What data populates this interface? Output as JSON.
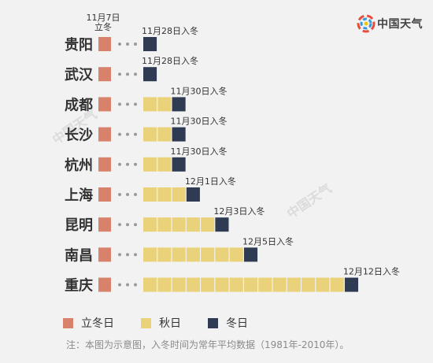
{
  "brand": {
    "name": "中国天气",
    "watermark": "中国天气"
  },
  "chart_data": {
    "type": "bar",
    "title": "",
    "first_day_label": "11月7日\n立冬",
    "categories": [
      "贵阳",
      "武汉",
      "成都",
      "长沙",
      "杭州",
      "上海",
      "昆明",
      "南昌",
      "重庆"
    ],
    "autumn_days": [
      0,
      0,
      2,
      2,
      2,
      3,
      5,
      7,
      14
    ],
    "winter_start_labels": [
      "11月28日入冬",
      "11月28日入冬",
      "11月30日入冬",
      "11月30日入冬",
      "11月30日入冬",
      "12月1日入冬",
      "12月3日入冬",
      "12月5日入冬",
      "12月12日入冬"
    ],
    "series": [
      {
        "name": "立冬日",
        "color": "#d9826b"
      },
      {
        "name": "秋日",
        "color": "#ead27a"
      },
      {
        "name": "冬日",
        "color": "#2f3b52"
      }
    ],
    "dots_color": "#9a9a9a"
  },
  "note": "注：本图为示意图，入冬时间为常年平均数据（1981年-2010年）。"
}
